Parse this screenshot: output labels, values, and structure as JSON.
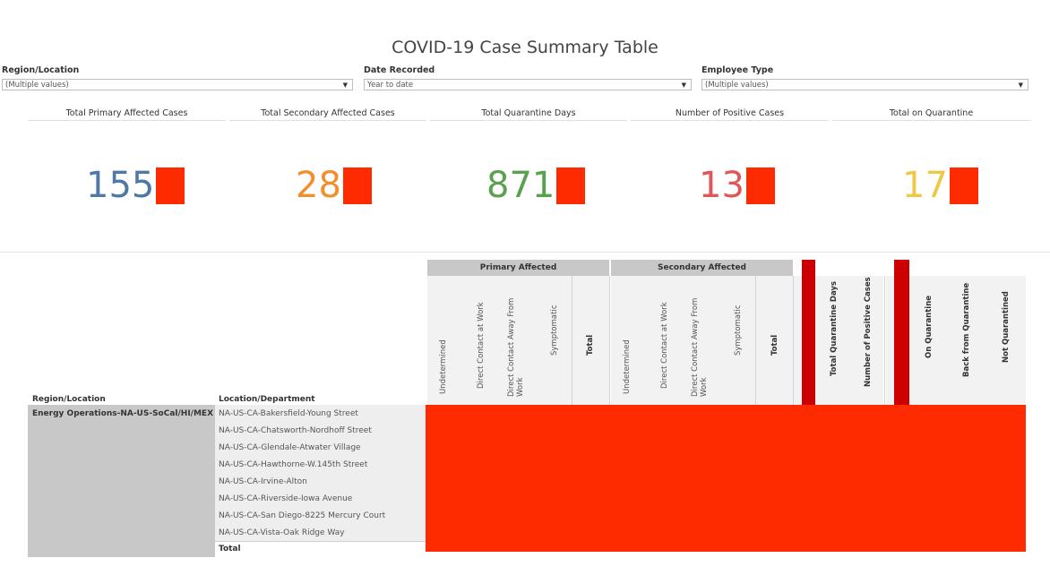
{
  "title": "COVID-19 Case Summary Table",
  "filters": {
    "region": {
      "label": "Region/Location",
      "value": "(Multiple values)"
    },
    "date": {
      "label": "Date Recorded",
      "value": "Year to date"
    },
    "employee": {
      "label": "Employee Type",
      "value": "(Multiple values)"
    }
  },
  "kpis": [
    {
      "label": "Total Primary Affected Cases",
      "value": "155",
      "color": "#4e79a7"
    },
    {
      "label": "Total Secondary Affected Cases",
      "value": "28",
      "color": "#f28e2b"
    },
    {
      "label": "Total Quarantine Days",
      "value": "871",
      "color": "#59a14f"
    },
    {
      "label": "Number of Positive Cases",
      "value": "13",
      "color": "#e15759"
    },
    {
      "label": "Total on Quarantine",
      "value": "17",
      "color": "#edc948"
    }
  ],
  "table": {
    "groups": {
      "primary": "Primary Affected",
      "secondary": "Secondary Affected"
    },
    "primary_cols": [
      "Undetermined",
      "Direct Contact at Work",
      "Direct Contact Away From Work",
      "Symptomatic",
      "Total"
    ],
    "secondary_cols": [
      "Undetermined",
      "Direct Contact at Work",
      "Direct Contact Away From Work",
      "Symptomatic",
      "Total"
    ],
    "mid_cols": [
      "Total Quarantine Days",
      "Number of Positive Cases"
    ],
    "right_cols": [
      "On Quarantine",
      "Back from Quarantine",
      "Not Quarantined"
    ],
    "row_headers": {
      "region": "Region/Location",
      "location": "Location/Department"
    },
    "region_value": "Energy Operations-NA-US-SoCal/HI/MEX",
    "locations": [
      "NA-US-CA-Bakersfield-Young Street",
      "NA-US-CA-Chatsworth-Nordhoff Street",
      "NA-US-CA-Glendale-Atwater Village",
      "NA-US-CA-Hawthorne-W.145th Street",
      "NA-US-CA-Irvine-Alton",
      "NA-US-CA-Riverside-Iowa Avenue",
      "NA-US-CA-San Diego-8225 Mercury Court",
      "NA-US-CA-Vista-Oak Ridge Way"
    ],
    "total_label": "Total"
  }
}
